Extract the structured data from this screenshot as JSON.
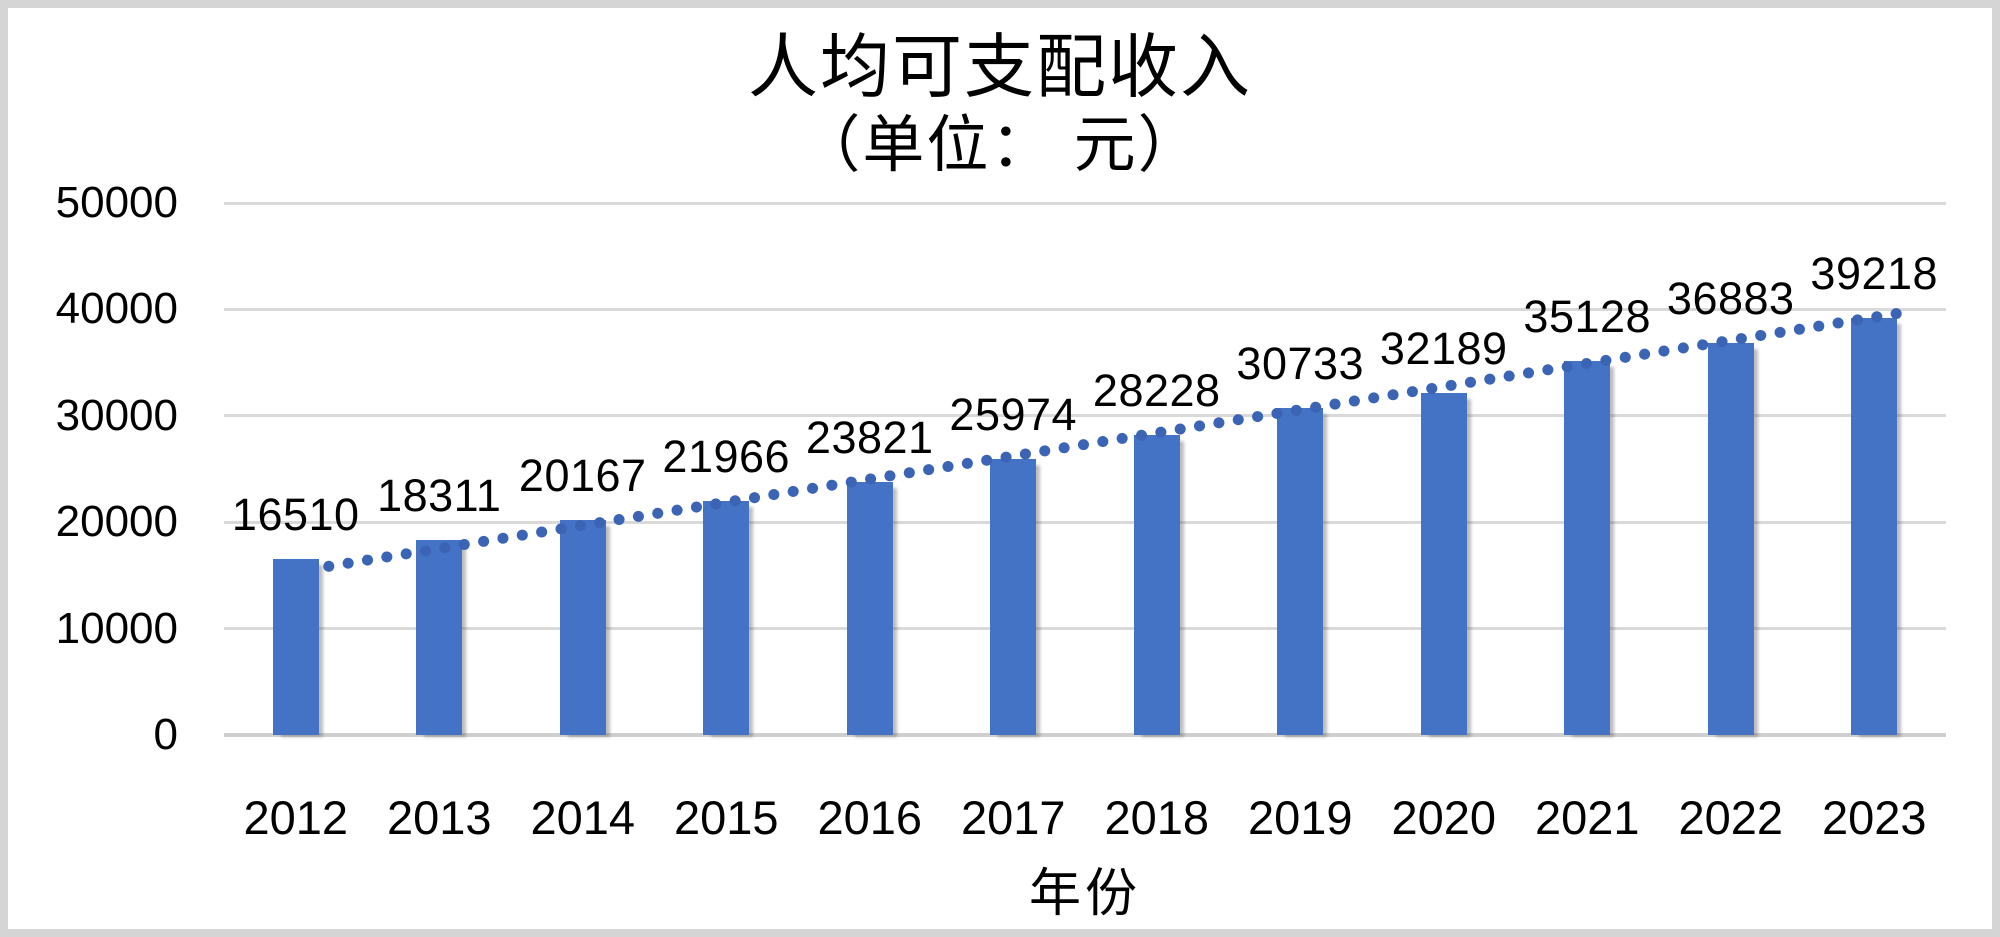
{
  "chart_data": {
    "type": "bar",
    "title": "人均可支配收入",
    "subtitle": "（单位：  元）",
    "xlabel": "年份",
    "ylabel": "",
    "categories": [
      "2012",
      "2013",
      "2014",
      "2015",
      "2016",
      "2017",
      "2018",
      "2019",
      "2020",
      "2021",
      "2022",
      "2023"
    ],
    "values": [
      16510,
      18311,
      20167,
      21966,
      23821,
      25974,
      28228,
      30733,
      32189,
      35128,
      36883,
      39218
    ],
    "ylim": [
      0,
      50000
    ],
    "yticks": [
      0,
      10000,
      20000,
      30000,
      40000,
      50000
    ],
    "grid": "horizontal",
    "legend": "none",
    "trendline": {
      "style": "dotted",
      "from_category": "2012",
      "to_category": "2023"
    },
    "colors": {
      "bar": "#4472c4",
      "trendline": "#3c64b5",
      "gridline": "#d9d9d9",
      "axis_line": "#cfcfcf",
      "text": "#000000",
      "frame_border": "#d5d5d5"
    }
  }
}
